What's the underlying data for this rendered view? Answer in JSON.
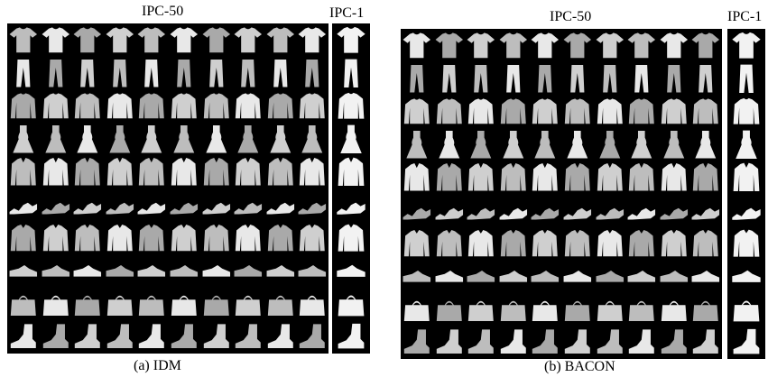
{
  "figure": {
    "panels": [
      {
        "id": "idm",
        "grid_title": "IPC-50",
        "column_title": "IPC-1",
        "caption": "(a) IDM"
      },
      {
        "id": "bacon",
        "grid_title": "IPC-50",
        "column_title": "IPC-1",
        "caption": "(b) BACON"
      }
    ],
    "row_item_icons": [
      "tshirt-icon",
      "trouser-icon",
      "pullover-icon",
      "dress-icon",
      "coat-icon",
      "sandal-icon",
      "shirt-icon",
      "sneaker-icon",
      "bag-icon",
      "ankle-boot-icon"
    ],
    "colors": {
      "background": "#000000",
      "item_fill": "#bdbdbd",
      "item_fill_light": "#e8e8e8"
    }
  }
}
